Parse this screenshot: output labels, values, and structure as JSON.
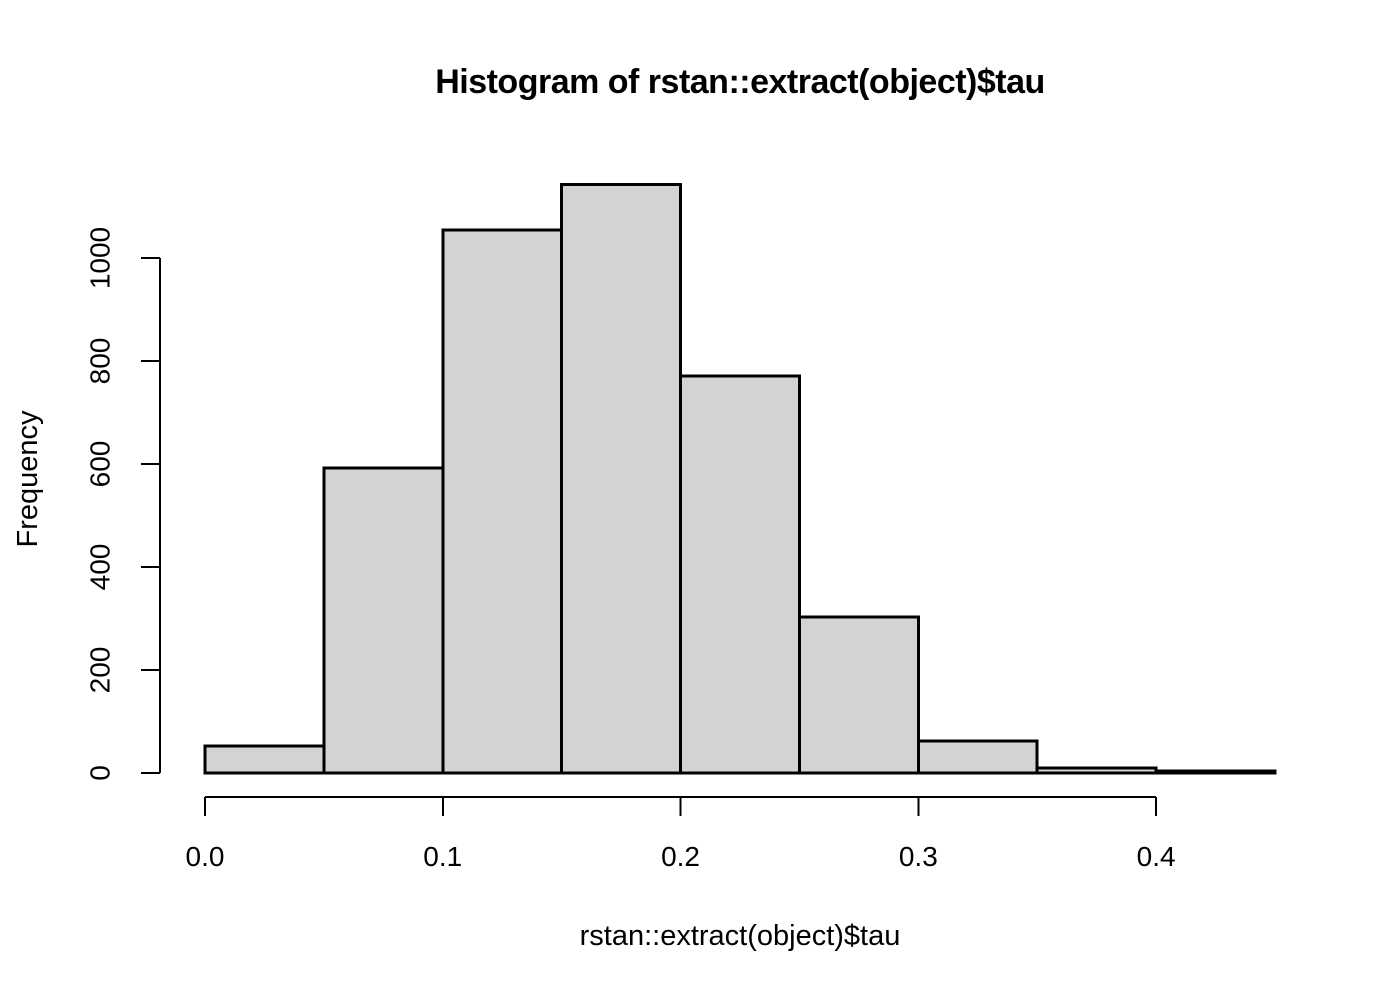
{
  "chart_data": {
    "type": "bar",
    "subtype": "histogram",
    "title": "Histogram of rstan::extract(object)$tau",
    "xlabel": "rstan::extract(object)$tau",
    "ylabel": "Frequency",
    "breaks": [
      0.0,
      0.05,
      0.1,
      0.15,
      0.2,
      0.25,
      0.3,
      0.35,
      0.4,
      0.45
    ],
    "counts": [
      52,
      592,
      1054,
      1143,
      771,
      303,
      62,
      10,
      4
    ],
    "xlim": [
      0,
      0.45
    ],
    "ylim": [
      0,
      1143
    ],
    "y_axis_range": [
      0,
      1000
    ],
    "x_ticks": [
      {
        "value": 0.0,
        "label": "0.0"
      },
      {
        "value": 0.1,
        "label": "0.1"
      },
      {
        "value": 0.2,
        "label": "0.2"
      },
      {
        "value": 0.3,
        "label": "0.3"
      },
      {
        "value": 0.4,
        "label": "0.4"
      }
    ],
    "y_ticks": [
      {
        "value": 0,
        "label": "0"
      },
      {
        "value": 200,
        "label": "200"
      },
      {
        "value": 400,
        "label": "400"
      },
      {
        "value": 600,
        "label": "600"
      },
      {
        "value": 800,
        "label": "800"
      },
      {
        "value": 1000,
        "label": "1000"
      }
    ],
    "grid": false,
    "legend": null,
    "colors": {
      "bar_fill": "#D3D3D3",
      "bar_border": "#000000",
      "axis": "#000000",
      "text": "#000000",
      "background": "#FFFFFF"
    }
  }
}
